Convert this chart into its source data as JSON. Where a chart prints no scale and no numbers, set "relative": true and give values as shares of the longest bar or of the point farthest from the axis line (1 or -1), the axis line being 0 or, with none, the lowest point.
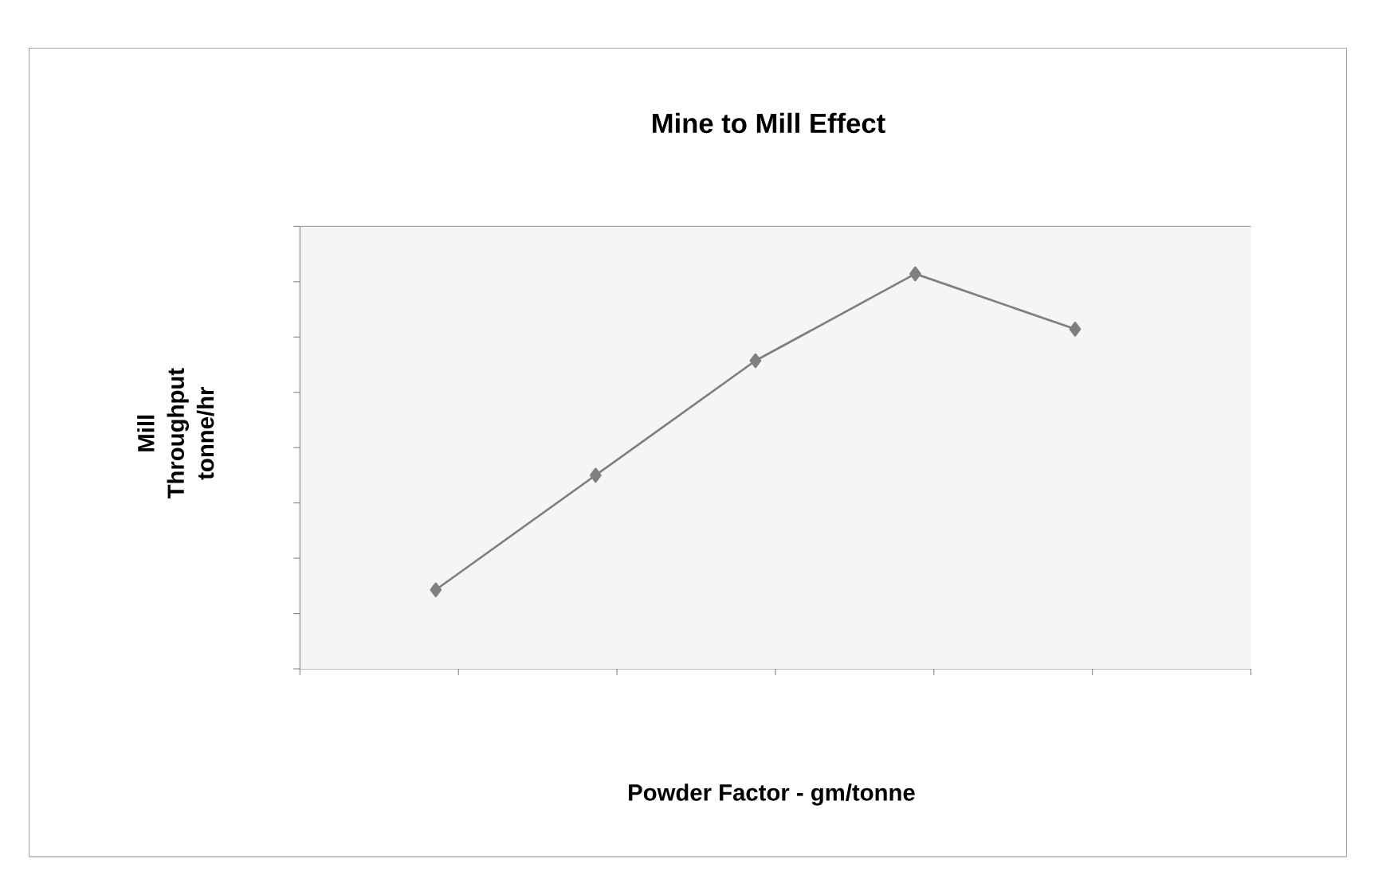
{
  "chart_data": {
    "type": "line",
    "title": "Mine to Mill Effect",
    "xlabel": "Powder Factor - gm/tonne",
    "ylabel": "Mill Throughput tonne/hr",
    "relative": true,
    "categories": [
      null,
      null,
      null,
      null,
      null
    ],
    "series": [
      {
        "color": "#7f7f7f",
        "values": [
          0.2,
          0.49,
          0.78,
          1,
          0.86
        ]
      }
    ],
    "marker": "diamond",
    "line_style": "solid"
  }
}
